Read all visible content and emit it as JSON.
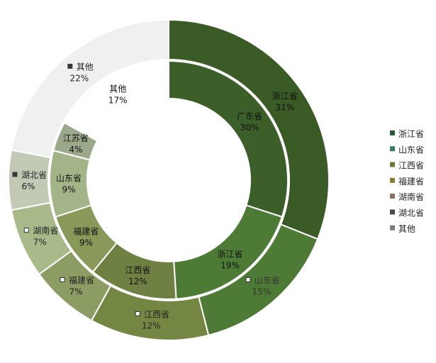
{
  "chart_data": {
    "type": "pie",
    "subtype": "doughnut",
    "legend_position": "right",
    "legend": [
      {
        "label": "浙江省",
        "color": "#2f5a3a"
      },
      {
        "label": "山东省",
        "color": "#3f7a5e"
      },
      {
        "label": "江西省",
        "color": "#6b7a33"
      },
      {
        "label": "福建省",
        "color": "#8a7a3c"
      },
      {
        "label": "湖南省",
        "color": "#8a6e5a"
      },
      {
        "label": "湖北省",
        "color": "#4a4a4a"
      },
      {
        "label": "其他",
        "color": "#7a7a7a"
      }
    ],
    "outer_ring": [
      {
        "name": "浙江省",
        "value": 31,
        "label": "31%",
        "color": "#3a5a26",
        "text_color": "#111111",
        "marker": false
      },
      {
        "name": "山东省",
        "value": 15,
        "label": "15%",
        "color": "#4d7a34",
        "text_color": "#333333",
        "marker": true
      },
      {
        "name": "江西省",
        "value": 12,
        "label": "12%",
        "color": "#738743",
        "text_color": "#222222",
        "marker": true
      },
      {
        "name": "福建省",
        "value": 7,
        "label": "7%",
        "color": "#8c9d64",
        "text_color": "#222222",
        "marker": true
      },
      {
        "name": "湖南省",
        "value": 7,
        "label": "7%",
        "color": "#a8b98a",
        "text_color": "#222222",
        "marker": true
      },
      {
        "name": "湖北省",
        "value": 6,
        "label": "6%",
        "color": "#c2cab6",
        "text_color": "#222222",
        "marker": true
      },
      {
        "name": "其他",
        "value": 22,
        "label": "22%",
        "color": "#f0f0f0",
        "text_color": "#222222",
        "marker": true
      }
    ],
    "inner_ring": [
      {
        "name": "广东省",
        "value": 30,
        "label": "30%",
        "color": "#3c5f2a",
        "text_color": "#111111"
      },
      {
        "name": "浙江省",
        "value": 19,
        "label": "19%",
        "color": "#4d7b35",
        "text_color": "#111111"
      },
      {
        "name": "江西省",
        "value": 12,
        "label": "12%",
        "color": "#6f8142",
        "text_color": "#111111"
      },
      {
        "name": "福建省",
        "value": 9,
        "label": "9%",
        "color": "#88995a",
        "text_color": "#111111"
      },
      {
        "name": "山东省",
        "value": 9,
        "label": "9%",
        "color": "#a3b488",
        "text_color": "#111111"
      },
      {
        "name": "江苏省",
        "value": 4,
        "label": "4%",
        "color": "#9ba88a",
        "text_color": "#111111"
      },
      {
        "name": "其他",
        "value": 17,
        "label": "17%",
        "color": "#ffffff",
        "text_color": "#111111"
      }
    ]
  }
}
